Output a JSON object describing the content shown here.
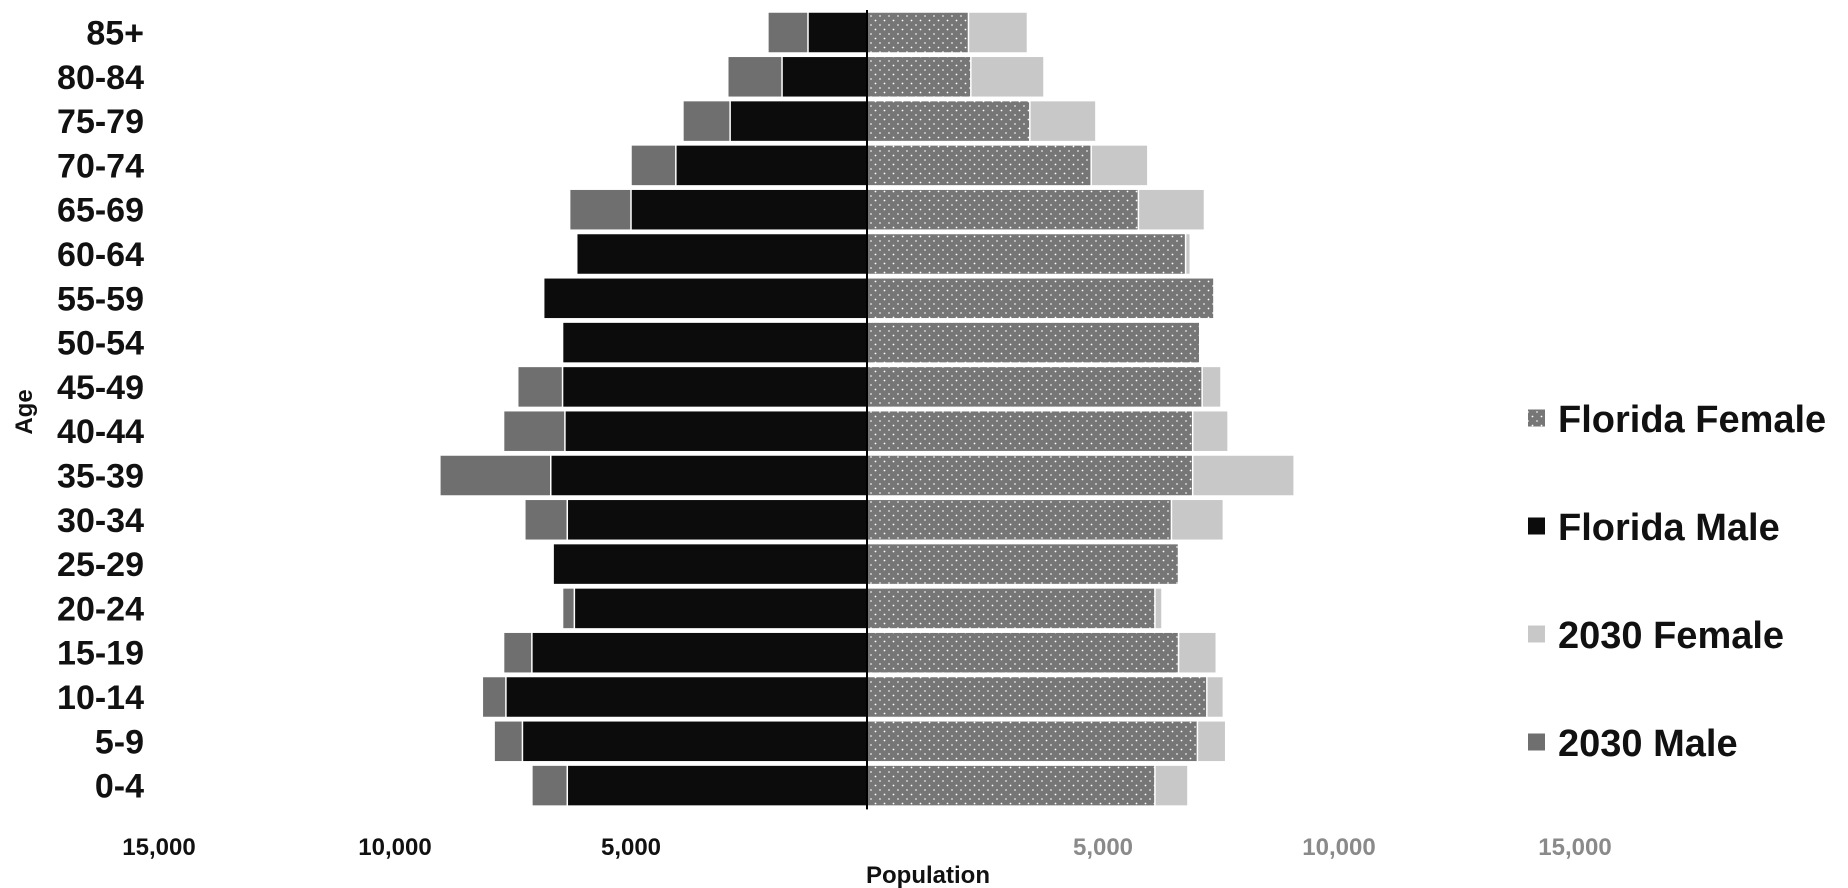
{
  "chart_data": {
    "type": "bar",
    "orientation": "horizontal",
    "subtype": "population-pyramid",
    "title": "",
    "xlabel": "Population",
    "ylabel": "Age",
    "xlim": [
      -15000,
      15000
    ],
    "x_tick_labels_left": [
      "15,000",
      "10,000",
      "5,000"
    ],
    "x_tick_labels_right": [
      "5,000",
      "10,000",
      "15,000"
    ],
    "x_tick_values_left": [
      -15000,
      -10000,
      -5000
    ],
    "x_tick_values_right": [
      5000,
      10000,
      15000
    ],
    "categories": [
      "0-4",
      "5-9",
      "10-14",
      "15-19",
      "20-24",
      "25-29",
      "30-34",
      "35-39",
      "40-44",
      "45-49",
      "50-54",
      "55-59",
      "60-64",
      "65-69",
      "70-74",
      "75-79",
      "80-84",
      "85+"
    ],
    "series": [
      {
        "name": "Florida Female",
        "side": "right",
        "values": [
          6100,
          7000,
          7200,
          6600,
          6100,
          6600,
          6450,
          6900,
          6900,
          7100,
          7050,
          7350,
          6750,
          5750,
          4750,
          3450,
          2200,
          2150
        ]
      },
      {
        "name": "Florida Male",
        "side": "left",
        "values": [
          6350,
          7300,
          7650,
          7100,
          6200,
          6650,
          6350,
          6700,
          6400,
          6450,
          6450,
          6850,
          6150,
          5000,
          4050,
          2900,
          1800,
          1250
        ]
      },
      {
        "name": "2030 Female",
        "side": "right",
        "values": [
          6800,
          7600,
          7550,
          7400,
          6250,
          6600,
          7550,
          9050,
          7650,
          7500,
          7050,
          7350,
          6850,
          7150,
          5950,
          4850,
          3750,
          3400
        ]
      },
      {
        "name": "2030 Male",
        "side": "left",
        "values": [
          7100,
          7900,
          8150,
          7700,
          6450,
          6650,
          7250,
          9050,
          7700,
          7400,
          6450,
          6850,
          6150,
          6300,
          5000,
          3900,
          2950,
          2100
        ]
      }
    ],
    "colors": {
      "Florida Female": "#767676",
      "Florida Male": "#0c0c0c",
      "2030 Female": "#c8c8c8",
      "2030 Male": "#6f6f6f"
    },
    "female_pattern": "dotted",
    "legend_position": "right",
    "legend_entries": [
      "Florida Female",
      "Florida Male",
      "2030 Female",
      "2030 Male"
    ],
    "grid": false
  }
}
